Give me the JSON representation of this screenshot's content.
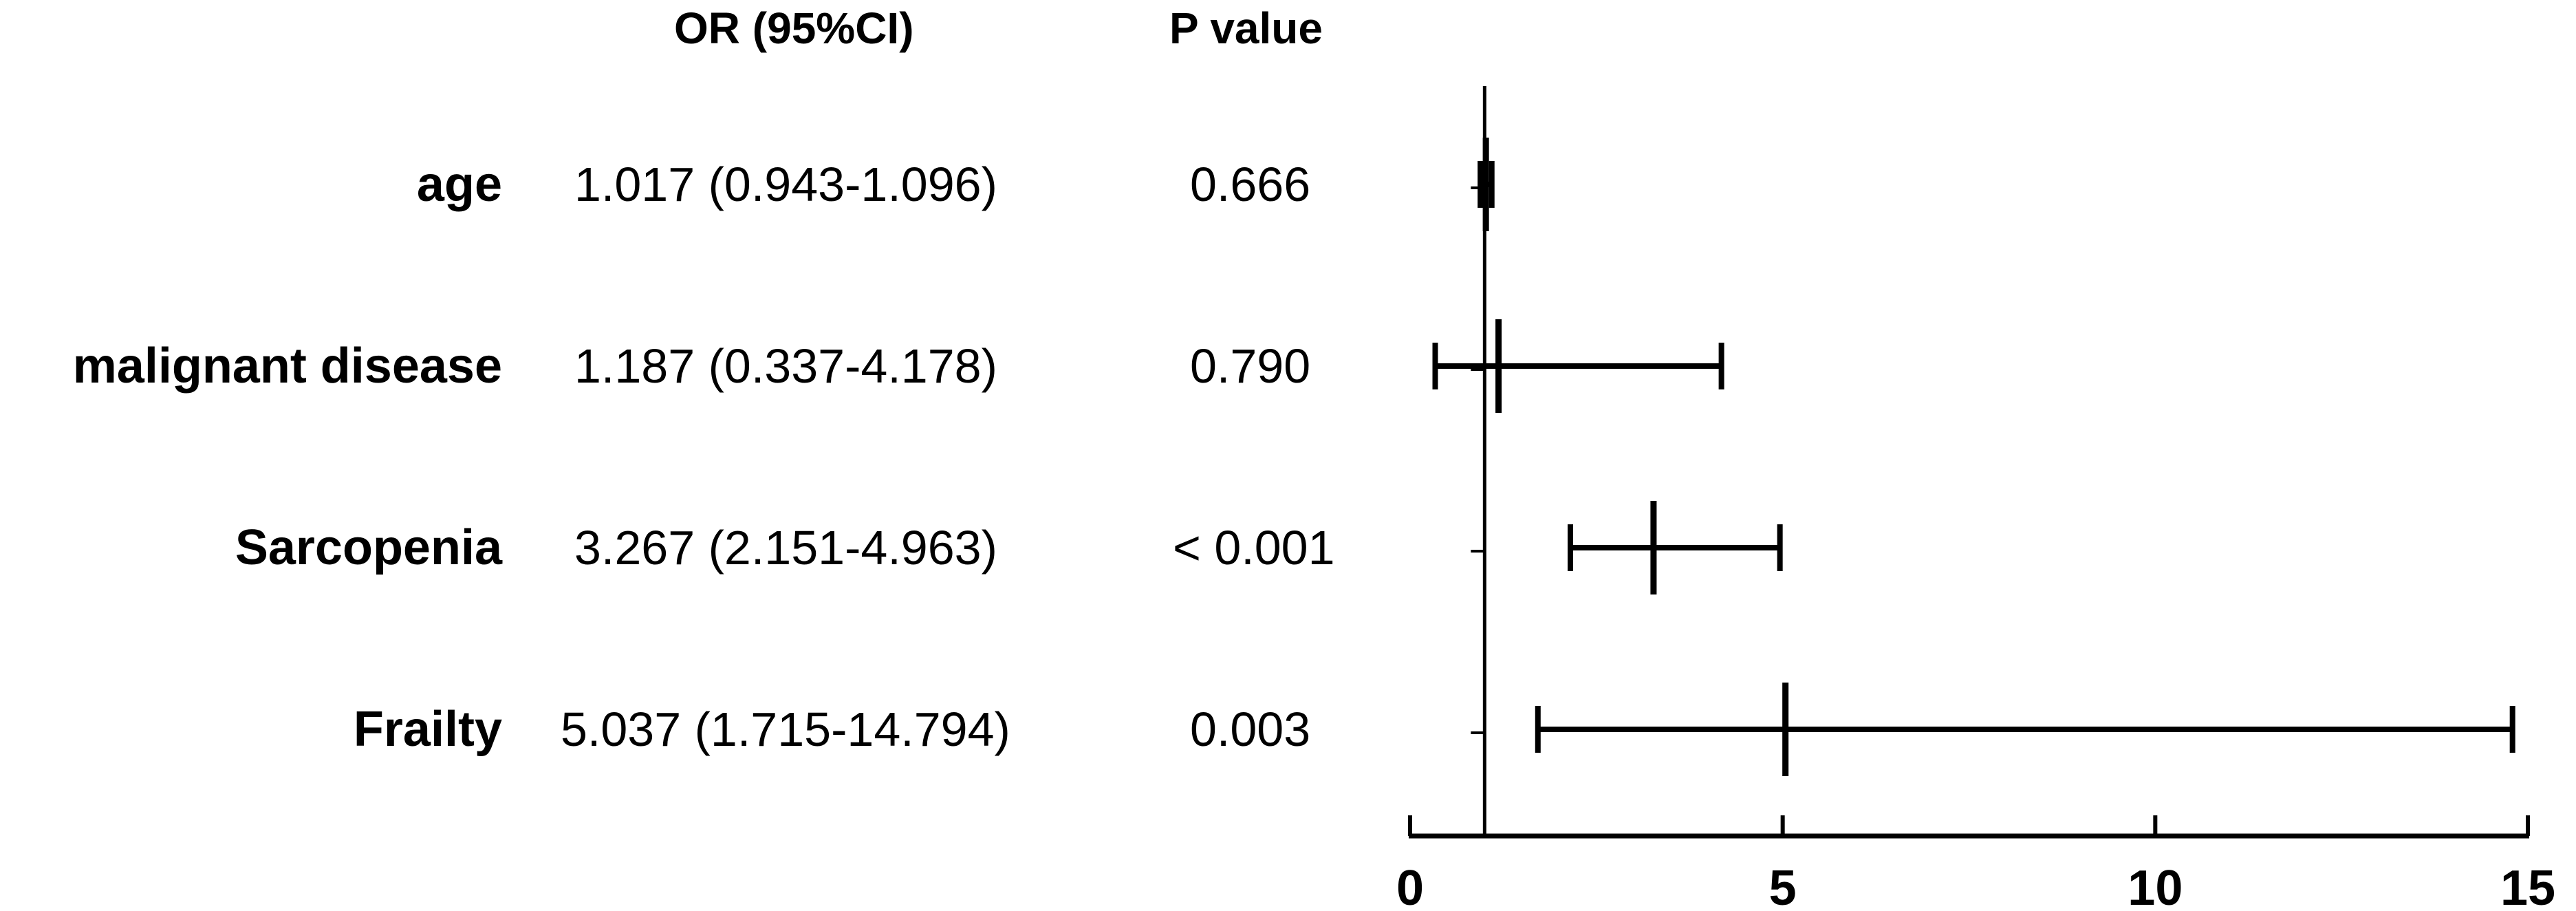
{
  "table": {
    "or_header": "OR (95%CI)",
    "p_header": "P value",
    "rows": [
      {
        "label": "age",
        "or_ci": "1.017 (0.943-1.096)",
        "p": "0.666"
      },
      {
        "label": "malignant disease",
        "or_ci": "1.187 (0.337-4.178)",
        "p": "0.790"
      },
      {
        "label": "Sarcopenia",
        "or_ci": "3.267 (2.151-4.963)",
        "p": "< 0.001"
      },
      {
        "label": "Frailty",
        "or_ci": "5.037 (1.715-14.794)",
        "p": "0.003"
      }
    ]
  },
  "chart_data": {
    "type": "forest",
    "title": "",
    "xlabel": "",
    "ylabel": "",
    "reference_line": 1,
    "xlim": [
      0,
      15
    ],
    "xticks": [
      0,
      5,
      10,
      15
    ],
    "categories": [
      "age",
      "malignant disease",
      "Sarcopenia",
      "Frailty"
    ],
    "series": [
      {
        "estimate": [
          1.017,
          1.187,
          3.267,
          5.037
        ],
        "lower": [
          0.943,
          0.337,
          2.151,
          1.715
        ],
        "upper": [
          1.096,
          4.178,
          4.963,
          14.794
        ]
      }
    ],
    "grid": false,
    "legend": "none",
    "colors": {
      "marks": "#000000",
      "axis": "#000000"
    }
  }
}
